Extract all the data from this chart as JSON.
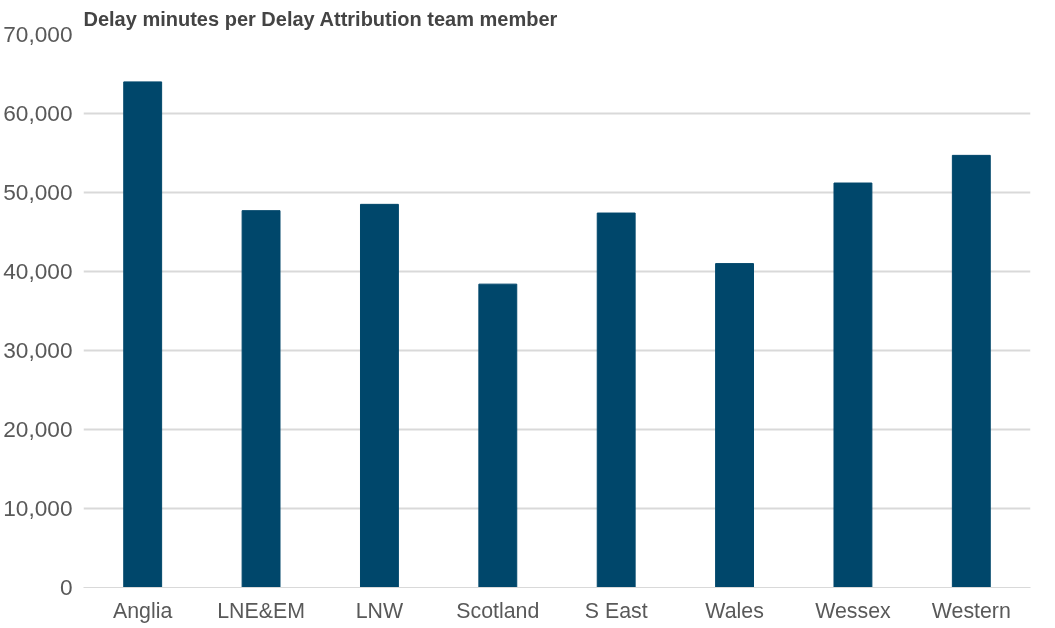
{
  "chart_data": {
    "type": "bar",
    "title": "Delay minutes per Delay Attribution team member",
    "categories": [
      "Anglia",
      "LNE&EM",
      "LNW",
      "Scotland",
      "S East",
      "Wales",
      "Wessex",
      "Western"
    ],
    "values": [
      64000,
      47700,
      48500,
      38400,
      47400,
      41000,
      51200,
      54700
    ],
    "color": "#00476b",
    "ylim": [
      0,
      70000
    ],
    "yticks": [
      {
        "value": 0,
        "label": "0"
      },
      {
        "value": 10000,
        "label": "10,000"
      },
      {
        "value": 20000,
        "label": "20,000"
      },
      {
        "value": 30000,
        "label": "30,000"
      },
      {
        "value": 40000,
        "label": "40,000"
      },
      {
        "value": 50000,
        "label": "50,000"
      },
      {
        "value": 60000,
        "label": "60,000"
      },
      {
        "value": 70000,
        "label": "70,000"
      }
    ],
    "grid": "y"
  }
}
